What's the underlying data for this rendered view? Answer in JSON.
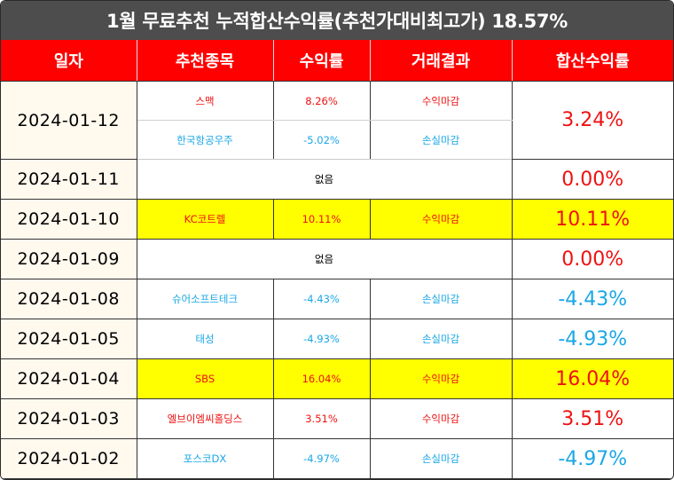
{
  "title": "1월 무료추천 누적합산수익률(추천가대비최고가) 18.57%",
  "headers": [
    "일자",
    "추천종목",
    "수익률",
    "거래결과",
    "합산수익률"
  ],
  "rows": [
    {
      "date": "2024-01-12",
      "total": "3.24%",
      "total_color": "red",
      "highlight": false,
      "picks": [
        {
          "stock": "스맥",
          "return": "8.26%",
          "result": "수익마감",
          "color": "red"
        },
        {
          "stock": "한국항공우주",
          "return": "-5.02%",
          "result": "손실마감",
          "color": "blue"
        }
      ]
    },
    {
      "date": "2024-01-11",
      "none": "없음",
      "total": "0.00%",
      "total_color": "red",
      "highlight": false
    },
    {
      "date": "2024-01-10",
      "total": "10.11%",
      "total_color": "red",
      "highlight": true,
      "picks": [
        {
          "stock": "KC코트렐",
          "return": "10.11%",
          "result": "수익마감",
          "color": "red"
        }
      ]
    },
    {
      "date": "2024-01-09",
      "none": "없음",
      "total": "0.00%",
      "total_color": "red",
      "highlight": false
    },
    {
      "date": "2024-01-08",
      "total": "-4.43%",
      "total_color": "blue",
      "highlight": false,
      "picks": [
        {
          "stock": "슈어소프트테크",
          "return": "-4.43%",
          "result": "손실마감",
          "color": "blue"
        }
      ]
    },
    {
      "date": "2024-01-05",
      "total": "-4.93%",
      "total_color": "blue",
      "highlight": false,
      "picks": [
        {
          "stock": "태성",
          "return": "-4.93%",
          "result": "손실마감",
          "color": "blue"
        }
      ]
    },
    {
      "date": "2024-01-04",
      "total": "16.04%",
      "total_color": "red",
      "highlight": true,
      "picks": [
        {
          "stock": "SBS",
          "return": "16.04%",
          "result": "수익마감",
          "color": "red"
        }
      ]
    },
    {
      "date": "2024-01-03",
      "total": "3.51%",
      "total_color": "red",
      "highlight": false,
      "picks": [
        {
          "stock": "엘브이엠씨홀딩스",
          "return": "3.51%",
          "result": "수익마감",
          "color": "red"
        }
      ]
    },
    {
      "date": "2024-01-02",
      "total": "-4.97%",
      "total_color": "blue",
      "highlight": false,
      "picks": [
        {
          "stock": "포스코DX",
          "return": "-4.97%",
          "result": "손실마감",
          "color": "blue"
        }
      ]
    }
  ]
}
